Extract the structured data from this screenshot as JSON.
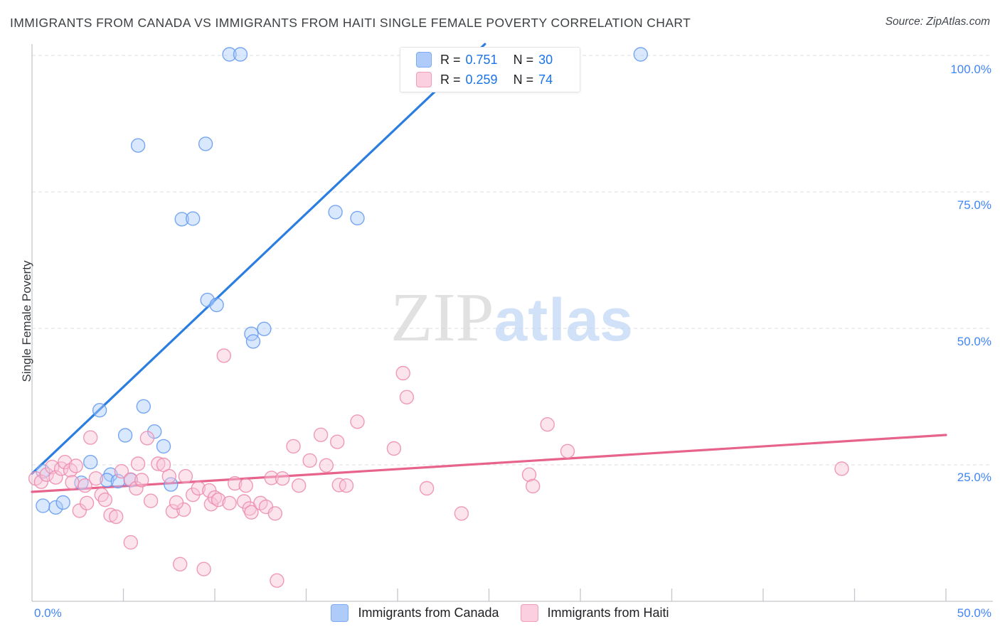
{
  "header": {
    "title": "IMMIGRANTS FROM CANADA VS IMMIGRANTS FROM HAITI SINGLE FEMALE POVERTY CORRELATION CHART",
    "source": "Source: ZipAtlas.com"
  },
  "watermark": {
    "zip": "ZIP",
    "atlas": "atlas"
  },
  "axes": {
    "y_label": "Single Female Poverty",
    "y_tick_labels": [
      "100.0%",
      "75.0%",
      "50.0%",
      "25.0%"
    ],
    "x_tick_left": "0.0%",
    "x_tick_right": "50.0%"
  },
  "legend_box": {
    "rows": [
      {
        "series": "Immigrants from Canada",
        "r_label": "R =",
        "r_value": "0.751",
        "n_label": "N =",
        "n_value": "30"
      },
      {
        "series": "Immigrants from Haiti",
        "r_label": "R =",
        "r_value": "0.259",
        "n_label": "N =",
        "n_value": "74"
      }
    ]
  },
  "bottom_legend": {
    "canada_label": "Immigrants from Canada",
    "haiti_label": "Immigrants from Haiti"
  },
  "colors": {
    "canada_fill": "#aecbfa",
    "canada_stroke": "#6199f0",
    "canada_trend": "#2a7de1",
    "haiti_fill": "#f9c4d8",
    "haiti_stroke": "#ec89ad",
    "haiti_trend": "#e8638c",
    "grid": "#dcdee2",
    "axis": "#c4c7cb",
    "tick_text": "#4285f4"
  },
  "chart_data": {
    "type": "scatter",
    "title": "IMMIGRANTS FROM CANADA VS IMMIGRANTS FROM HAITI SINGLE FEMALE POVERTY CORRELATION CHART",
    "xlabel": "",
    "ylabel": "Single Female Poverty",
    "x_range": [
      0.0,
      0.5
    ],
    "y_range": [
      0.0,
      1.05
    ],
    "x_tick_step": 0.05,
    "y_gridlines": [
      0.25,
      0.5,
      0.75,
      1.0
    ],
    "grid": "dashed-horizontal",
    "legend_position": "top-center and bottom-center",
    "series": [
      {
        "name": "Immigrants from Canada",
        "R": 0.751,
        "N": 30,
        "points": [
          [
            0.108,
            1.002
          ],
          [
            0.114,
            1.002
          ],
          [
            0.333,
            1.002
          ],
          [
            0.058,
            0.835
          ],
          [
            0.095,
            0.838
          ],
          [
            0.082,
            0.7
          ],
          [
            0.088,
            0.701
          ],
          [
            0.166,
            0.713
          ],
          [
            0.178,
            0.702
          ],
          [
            0.096,
            0.552
          ],
          [
            0.101,
            0.543
          ],
          [
            0.12,
            0.49
          ],
          [
            0.127,
            0.499
          ],
          [
            0.121,
            0.476
          ],
          [
            0.037,
            0.35
          ],
          [
            0.061,
            0.357
          ],
          [
            0.051,
            0.304
          ],
          [
            0.067,
            0.311
          ],
          [
            0.072,
            0.284
          ],
          [
            0.032,
            0.255
          ],
          [
            0.043,
            0.232
          ],
          [
            0.027,
            0.217
          ],
          [
            0.041,
            0.222
          ],
          [
            0.047,
            0.22
          ],
          [
            0.054,
            0.222
          ],
          [
            0.076,
            0.214
          ],
          [
            0.006,
            0.238
          ],
          [
            0.006,
            0.175
          ],
          [
            0.013,
            0.172
          ],
          [
            0.017,
            0.181
          ]
        ]
      },
      {
        "name": "Immigrants from Haiti",
        "R": 0.259,
        "N": 74,
        "points": [
          [
            0.002,
            0.225
          ],
          [
            0.005,
            0.219
          ],
          [
            0.008,
            0.232
          ],
          [
            0.011,
            0.246
          ],
          [
            0.013,
            0.227
          ],
          [
            0.016,
            0.243
          ],
          [
            0.018,
            0.255
          ],
          [
            0.021,
            0.24
          ],
          [
            0.022,
            0.218
          ],
          [
            0.024,
            0.248
          ],
          [
            0.026,
            0.166
          ],
          [
            0.029,
            0.212
          ],
          [
            0.03,
            0.18
          ],
          [
            0.032,
            0.3
          ],
          [
            0.035,
            0.225
          ],
          [
            0.038,
            0.195
          ],
          [
            0.04,
            0.186
          ],
          [
            0.043,
            0.158
          ],
          [
            0.046,
            0.155
          ],
          [
            0.049,
            0.238
          ],
          [
            0.054,
            0.108
          ],
          [
            0.054,
            0.223
          ],
          [
            0.057,
            0.207
          ],
          [
            0.058,
            0.252
          ],
          [
            0.06,
            0.222
          ],
          [
            0.063,
            0.299
          ],
          [
            0.065,
            0.184
          ],
          [
            0.069,
            0.252
          ],
          [
            0.072,
            0.25
          ],
          [
            0.075,
            0.229
          ],
          [
            0.077,
            0.165
          ],
          [
            0.081,
            0.068
          ],
          [
            0.083,
            0.168
          ],
          [
            0.084,
            0.229
          ],
          [
            0.088,
            0.195
          ],
          [
            0.091,
            0.207
          ],
          [
            0.094,
            0.059
          ],
          [
            0.097,
            0.203
          ],
          [
            0.098,
            0.178
          ],
          [
            0.1,
            0.19
          ],
          [
            0.102,
            0.186
          ],
          [
            0.105,
            0.45
          ],
          [
            0.108,
            0.18
          ],
          [
            0.111,
            0.216
          ],
          [
            0.116,
            0.183
          ],
          [
            0.117,
            0.212
          ],
          [
            0.119,
            0.17
          ],
          [
            0.12,
            0.163
          ],
          [
            0.125,
            0.18
          ],
          [
            0.128,
            0.173
          ],
          [
            0.131,
            0.226
          ],
          [
            0.133,
            0.161
          ],
          [
            0.134,
            0.038
          ],
          [
            0.137,
            0.225
          ],
          [
            0.143,
            0.284
          ],
          [
            0.146,
            0.212
          ],
          [
            0.152,
            0.258
          ],
          [
            0.158,
            0.305
          ],
          [
            0.161,
            0.249
          ],
          [
            0.167,
            0.292
          ],
          [
            0.168,
            0.213
          ],
          [
            0.172,
            0.212
          ],
          [
            0.178,
            0.329
          ],
          [
            0.198,
            0.28
          ],
          [
            0.203,
            0.418
          ],
          [
            0.205,
            0.374
          ],
          [
            0.216,
            0.207
          ],
          [
            0.235,
            0.161
          ],
          [
            0.272,
            0.232
          ],
          [
            0.274,
            0.211
          ],
          [
            0.282,
            0.324
          ],
          [
            0.293,
            0.275
          ],
          [
            0.079,
            0.181
          ],
          [
            0.443,
            0.243
          ]
        ]
      }
    ],
    "trendlines": [
      {
        "series": "Immigrants from Canada",
        "from": [
          0.0,
          0.234
        ],
        "to": [
          0.2478,
          1.0208
        ]
      },
      {
        "series": "Immigrants from Haiti",
        "from": [
          0.0,
          0.2005
        ],
        "to": [
          0.5,
          0.3047
        ]
      }
    ]
  }
}
